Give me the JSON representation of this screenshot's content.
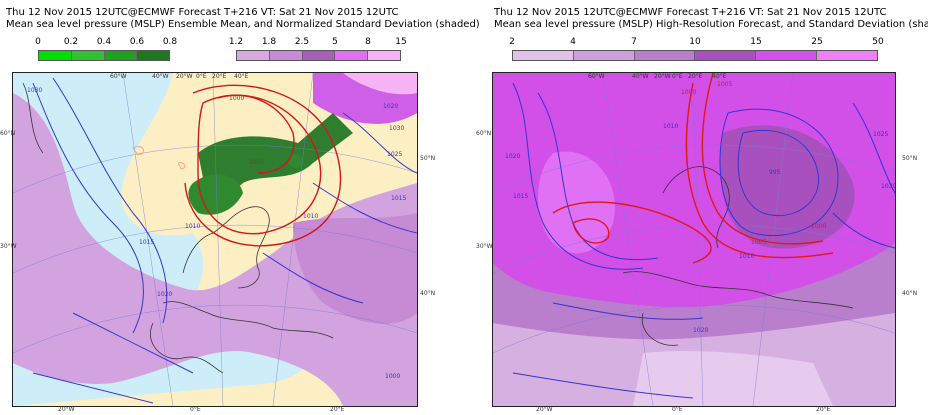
{
  "left": {
    "title_line1": "Thu 12 Nov 2015 12UTC@ECMWF Forecast T+216 VT: Sat 21 Nov 2015 12UTC",
    "title_line2": "Mean sea level pressure (MSLP) Ensemble Mean, and Normalized Standard Deviation (shaded)",
    "colorbar_green": {
      "labels": [
        "0",
        "0.2",
        "0.4",
        "0.6",
        "0.8"
      ],
      "colors": [
        "#00e000",
        "#30c030",
        "#20a020",
        "#1c7a1c"
      ]
    },
    "colorbar_purple": {
      "labels": [
        "1.2",
        "1.8",
        "2.5",
        "5",
        "8",
        "15"
      ],
      "colors": [
        "#d9a8e0",
        "#c78ad4",
        "#a560b8",
        "#e070f0",
        "#f8b0f8"
      ]
    },
    "contour_labels": [
      "1000",
      "1010",
      "1020",
      "1030",
      "1015",
      "1025",
      "1005",
      "1010",
      "1015",
      "1020",
      "1000",
      "1030"
    ],
    "axis_labels": [
      "60°W",
      "40°W",
      "20°W",
      "0°E",
      "20°E",
      "40°E",
      "60°N",
      "50°N",
      "40°N",
      "30°W",
      "20°W",
      "0°E",
      "20°E"
    ]
  },
  "right": {
    "title_line1": "Thu 12 Nov 2015 12UTC@ECMWF Forecast T+216 VT: Sat 21 Nov 2015 12UTC",
    "title_line2": "Mean sea level pressure (MSLP) High-Resolution Forecast, and Standard Deviation (shaded)",
    "colorbar": {
      "labels": [
        "2",
        "4",
        "7",
        "10",
        "15",
        "25",
        "50"
      ],
      "colors": [
        "#e3c2ea",
        "#cf9edc",
        "#b97ecc",
        "#a950bf",
        "#d050e8",
        "#f080f8"
      ]
    },
    "contour_labels": [
      "1000",
      "1005",
      "1010",
      "1015",
      "1020",
      "1025",
      "1030",
      "995",
      "1000",
      "1005",
      "1010",
      "1020"
    ],
    "axis_labels": [
      "60°W",
      "40°W",
      "20°W",
      "0°E",
      "20°E",
      "40°E",
      "60°N",
      "50°N",
      "40°N",
      "30°W",
      "20°W",
      "0°E",
      "20°E"
    ]
  }
}
